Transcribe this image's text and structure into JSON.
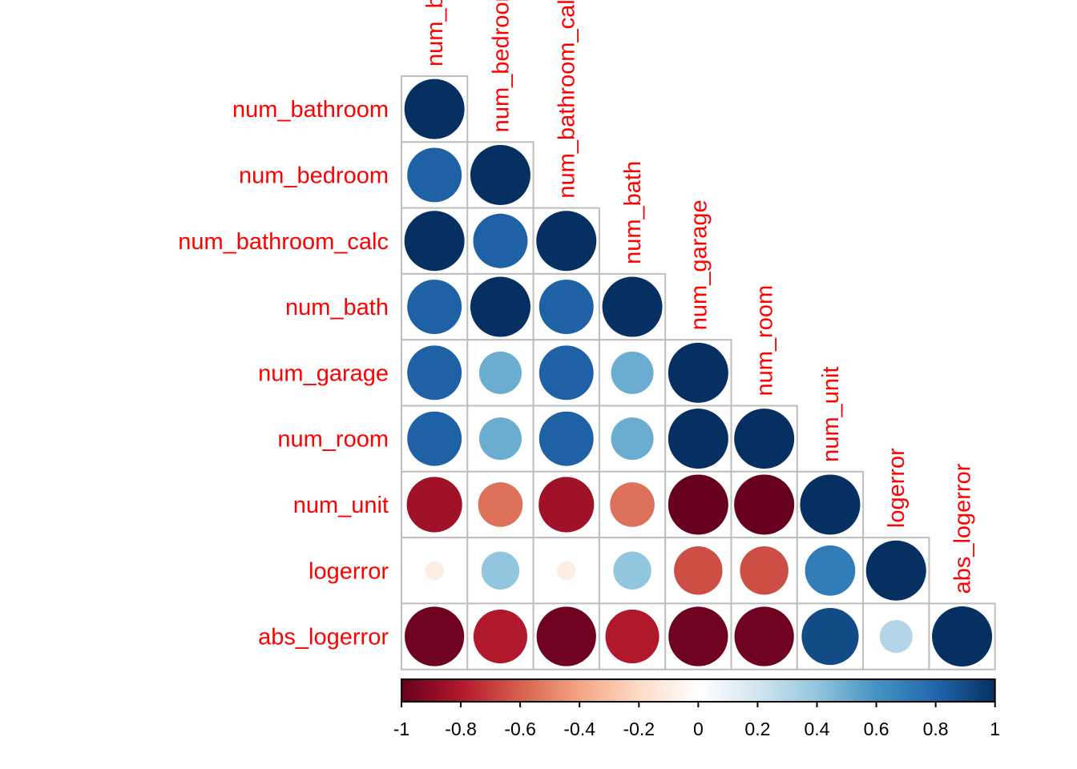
{
  "chart_data": {
    "type": "heatmap",
    "subtype": "correlation-circles-lower-triangle",
    "variables": [
      "num_bathroom",
      "num_bedroom",
      "num_bathroom_calc",
      "num_bath",
      "num_garage",
      "num_room",
      "num_unit",
      "logerror",
      "abs_logerror"
    ],
    "matrix": [
      [
        1.0
      ],
      [
        0.82,
        1.0
      ],
      [
        1.0,
        0.82,
        1.0
      ],
      [
        0.82,
        1.0,
        0.82,
        1.0
      ],
      [
        0.82,
        0.5,
        0.82,
        0.5,
        1.0
      ],
      [
        0.82,
        0.5,
        0.82,
        0.5,
        1.0,
        1.0
      ],
      [
        -0.85,
        -0.55,
        -0.85,
        -0.55,
        -1.0,
        -1.0,
        1.0
      ],
      [
        -0.1,
        0.4,
        -0.1,
        0.4,
        -0.65,
        -0.65,
        0.7,
        1.0
      ],
      [
        -0.98,
        -0.8,
        -0.98,
        -0.8,
        -0.98,
        -0.98,
        0.9,
        0.3,
        1.0
      ]
    ],
    "colorbar": {
      "min": -1,
      "max": 1,
      "ticks": [
        "-1",
        "-0.8",
        "-0.6",
        "-0.4",
        "-0.2",
        "0",
        "0.2",
        "0.4",
        "0.6",
        "0.8",
        "1"
      ],
      "palette": [
        "#67001F",
        "#B2182B",
        "#D6604D",
        "#F4A582",
        "#FDDBC7",
        "#FFFFFF",
        "#D1E5F0",
        "#92C5DE",
        "#4393C3",
        "#2166AC",
        "#053061"
      ]
    },
    "label_color": "#FF0000",
    "grid": true
  }
}
